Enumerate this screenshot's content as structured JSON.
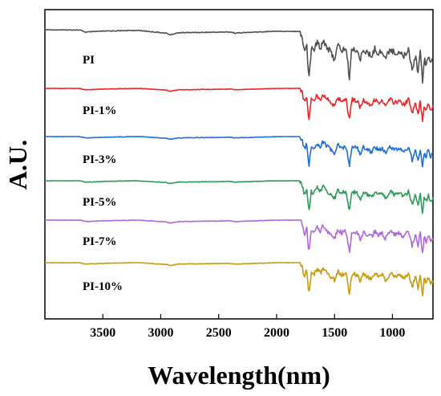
{
  "chart_data": {
    "type": "line",
    "title": "",
    "xlabel": "Wavelength(nm)",
    "ylabel": "A.U.",
    "x_reversed": true,
    "xlim": [
      4000,
      650
    ],
    "xticks": [
      3500,
      3000,
      2500,
      2000,
      1500,
      1000
    ],
    "y_ticks_shown": false,
    "grid": false,
    "legend": "none",
    "series": [
      {
        "name": "PI",
        "color": "#505050"
      },
      {
        "name": "PI-1%",
        "color": "#e8262a"
      },
      {
        "name": "PI-3%",
        "color": "#1f6fd6"
      },
      {
        "name": "PI-5%",
        "color": "#2e9a5a"
      },
      {
        "name": "PI-7%",
        "color": "#b067dc"
      },
      {
        "name": "PI-10%",
        "color": "#c89a0e"
      }
    ],
    "spectrum_profile": {
      "x": [
        4000,
        3700,
        3650,
        3500,
        3200,
        2950,
        2920,
        2850,
        2400,
        2360,
        2000,
        1800,
        1780,
        1760,
        1740,
        1722,
        1700,
        1680,
        1650,
        1620,
        1600,
        1560,
        1500,
        1470,
        1440,
        1400,
        1372,
        1350,
        1300,
        1280,
        1250,
        1220,
        1180,
        1150,
        1120,
        1090,
        1060,
        1020,
        980,
        940,
        900,
        860,
        830,
        800,
        780,
        760,
        740,
        725,
        710,
        690,
        670,
        650
      ],
      "absorbance": [
        0.0,
        0.0,
        0.04,
        0.02,
        0.0,
        0.05,
        0.08,
        0.04,
        0.02,
        0.04,
        0.0,
        0.0,
        0.1,
        0.4,
        0.2,
        0.9,
        0.3,
        0.35,
        0.2,
        0.3,
        0.15,
        0.3,
        0.5,
        0.25,
        0.35,
        0.3,
        0.85,
        0.3,
        0.35,
        0.55,
        0.3,
        0.4,
        0.45,
        0.3,
        0.4,
        0.35,
        0.5,
        0.3,
        0.4,
        0.35,
        0.45,
        0.3,
        0.7,
        0.4,
        0.75,
        0.35,
        0.9,
        0.45,
        0.6,
        0.4,
        0.6,
        0.5
      ]
    }
  }
}
